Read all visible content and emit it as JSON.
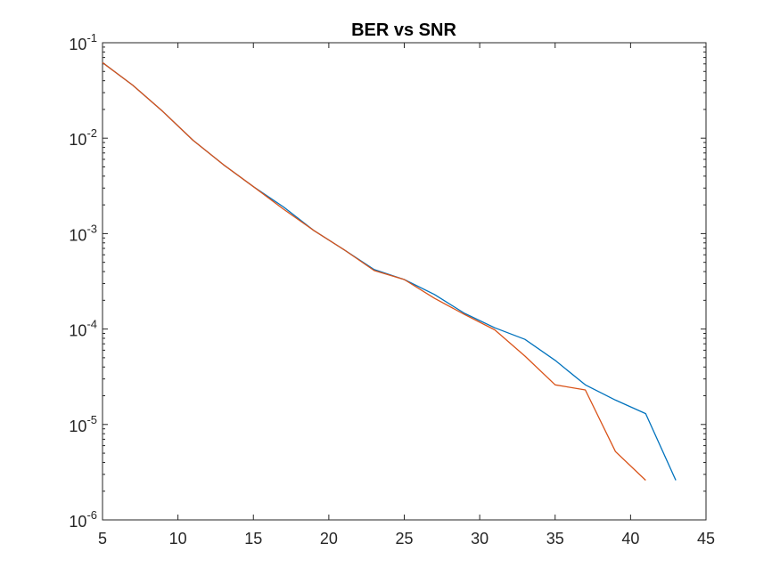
{
  "chart_data": {
    "type": "line",
    "title": "BER vs SNR",
    "xlabel": "",
    "ylabel": "",
    "xlim": [
      5,
      45
    ],
    "ylim": [
      1e-06,
      0.1
    ],
    "yscale": "log",
    "grid": false,
    "x_ticks": [
      {
        "value": 5,
        "label": "5"
      },
      {
        "value": 10,
        "label": "10"
      },
      {
        "value": 15,
        "label": "15"
      },
      {
        "value": 20,
        "label": "20"
      },
      {
        "value": 25,
        "label": "25"
      },
      {
        "value": 30,
        "label": "30"
      },
      {
        "value": 35,
        "label": "35"
      },
      {
        "value": 40,
        "label": "40"
      },
      {
        "value": 45,
        "label": "45"
      }
    ],
    "y_ticks": [
      {
        "value": 0.1,
        "base": "10",
        "exp": "-1"
      },
      {
        "value": 0.01,
        "base": "10",
        "exp": "-2"
      },
      {
        "value": 0.001,
        "base": "10",
        "exp": "-3"
      },
      {
        "value": 0.0001,
        "base": "10",
        "exp": "-4"
      },
      {
        "value": 1e-05,
        "base": "10",
        "exp": "-5"
      },
      {
        "value": 1e-06,
        "base": "10",
        "exp": "-6"
      }
    ],
    "series": [
      {
        "color": "#0072BD",
        "x": [
          5,
          7,
          9,
          11,
          13,
          15,
          17,
          19,
          21,
          23,
          25,
          27,
          29,
          31,
          33,
          35,
          37,
          39,
          41,
          43
        ],
        "y": [
          0.062,
          0.036,
          0.019,
          0.0095,
          0.0053,
          0.0031,
          0.0019,
          0.00108,
          0.00068,
          0.00042,
          0.00033,
          0.00023,
          0.000146,
          0.000103,
          7.8e-05,
          4.7e-05,
          2.6e-05,
          1.8e-05,
          1.3e-05,
          2.6e-06
        ]
      },
      {
        "color": "#D95319",
        "x": [
          5,
          7,
          9,
          11,
          13,
          15,
          17,
          19,
          21,
          23,
          25,
          27,
          29,
          31,
          33,
          35,
          37,
          39,
          41
        ],
        "y": [
          0.062,
          0.036,
          0.019,
          0.0095,
          0.0053,
          0.0031,
          0.0018,
          0.00108,
          0.00068,
          0.00041,
          0.00033,
          0.00021,
          0.000142,
          9.8e-05,
          5.2e-05,
          2.6e-05,
          2.3e-05,
          5.2e-06,
          2.6e-06
        ]
      }
    ]
  }
}
